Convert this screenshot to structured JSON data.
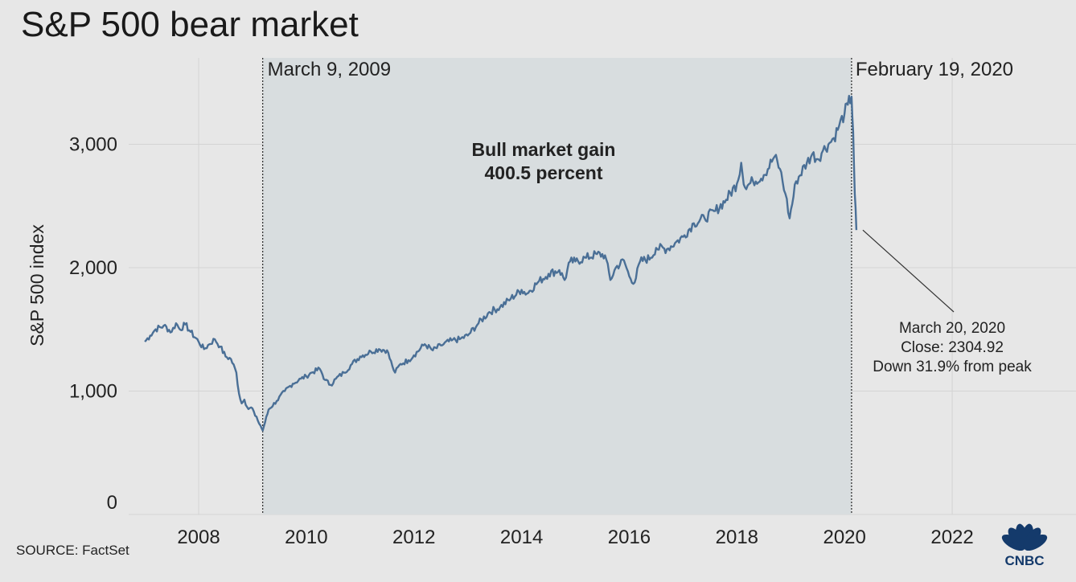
{
  "chart_data": {
    "type": "line",
    "title": "S&P 500 bear market",
    "ylabel": "S&P 500 index",
    "xlabel": "",
    "xlim": [
      2006.7,
      2024.3
    ],
    "ylim": [
      0,
      3700
    ],
    "x_ticks": [
      2008,
      2010,
      2012,
      2014,
      2016,
      2018,
      2020,
      2022
    ],
    "x_tick_labels": [
      "2008",
      "2010",
      "2012",
      "2014",
      "2016",
      "2018",
      "2020",
      "2022"
    ],
    "y_ticks": [
      0,
      1000,
      2000,
      3000
    ],
    "y_tick_labels": [
      "0",
      "1,000",
      "2,000",
      "3,000"
    ],
    "series": [
      {
        "name": "S&P 500 index",
        "color": "#4a6f96",
        "x": [
          2007.0,
          2007.1,
          2007.2,
          2007.35,
          2007.5,
          2007.58,
          2007.65,
          2007.75,
          2007.85,
          2008.0,
          2008.1,
          2008.2,
          2008.3,
          2008.4,
          2008.5,
          2008.6,
          2008.7,
          2008.75,
          2008.8,
          2008.85,
          2008.9,
          2009.0,
          2009.05,
          2009.1,
          2009.15,
          2009.19,
          2009.3,
          2009.45,
          2009.6,
          2009.75,
          2009.9,
          2010.0,
          2010.1,
          2010.25,
          2010.35,
          2010.45,
          2010.55,
          2010.7,
          2010.85,
          2011.0,
          2011.2,
          2011.35,
          2011.5,
          2011.6,
          2011.65,
          2011.75,
          2011.9,
          2012.0,
          2012.2,
          2012.35,
          2012.5,
          2012.7,
          2012.85,
          2013.0,
          2013.2,
          2013.4,
          2013.6,
          2013.8,
          2014.0,
          2014.1,
          2014.3,
          2014.5,
          2014.7,
          2014.8,
          2014.9,
          2015.0,
          2015.2,
          2015.4,
          2015.55,
          2015.65,
          2015.75,
          2015.9,
          2016.0,
          2016.1,
          2016.2,
          2016.4,
          2016.5,
          2016.7,
          2016.85,
          2017.0,
          2017.2,
          2017.4,
          2017.6,
          2017.8,
          2018.0,
          2018.08,
          2018.15,
          2018.3,
          2018.5,
          2018.7,
          2018.8,
          2018.9,
          2018.98,
          2019.1,
          2019.3,
          2019.4,
          2019.5,
          2019.6,
          2019.7,
          2019.8,
          2019.9,
          2020.0,
          2020.06,
          2020.13,
          2020.16,
          2020.19,
          2020.22
        ],
        "values": [
          1400,
          1450,
          1500,
          1530,
          1480,
          1550,
          1500,
          1540,
          1480,
          1400,
          1340,
          1380,
          1420,
          1360,
          1280,
          1260,
          1150,
          980,
          900,
          930,
          870,
          860,
          800,
          760,
          720,
          680,
          850,
          920,
          1000,
          1060,
          1100,
          1120,
          1150,
          1180,
          1090,
          1050,
          1100,
          1150,
          1220,
          1280,
          1320,
          1340,
          1330,
          1200,
          1150,
          1220,
          1250,
          1290,
          1380,
          1330,
          1370,
          1410,
          1420,
          1450,
          1550,
          1640,
          1680,
          1750,
          1820,
          1790,
          1880,
          1950,
          1980,
          1900,
          2050,
          2050,
          2080,
          2110,
          2100,
          1900,
          2000,
          2060,
          1930,
          1880,
          2050,
          2080,
          2160,
          2150,
          2200,
          2250,
          2360,
          2400,
          2460,
          2550,
          2680,
          2850,
          2650,
          2700,
          2750,
          2900,
          2800,
          2600,
          2400,
          2700,
          2850,
          2920,
          2880,
          2950,
          3000,
          3050,
          3150,
          3250,
          3320,
          3386,
          3100,
          2600,
          2305
        ]
      }
    ],
    "shaded_region": {
      "x_start": 2009.19,
      "x_end": 2020.13
    },
    "annotations": {
      "start_date": "March 9, 2009",
      "end_date": "February 19, 2020",
      "bull_line1": "Bull market gain",
      "bull_line2": "400.5 percent",
      "low_line1": "March 20, 2020",
      "low_line2": "Close: 2304.92",
      "low_line3": "Down 31.9% from peak"
    },
    "source": "SOURCE: FactSet",
    "logo": "CNBC"
  },
  "colors": {
    "background": "#e7e7e7",
    "shade": "#d8dddf",
    "line": "#4a6f96",
    "grid": "#d4d4d4",
    "logo": "#143a6b"
  }
}
